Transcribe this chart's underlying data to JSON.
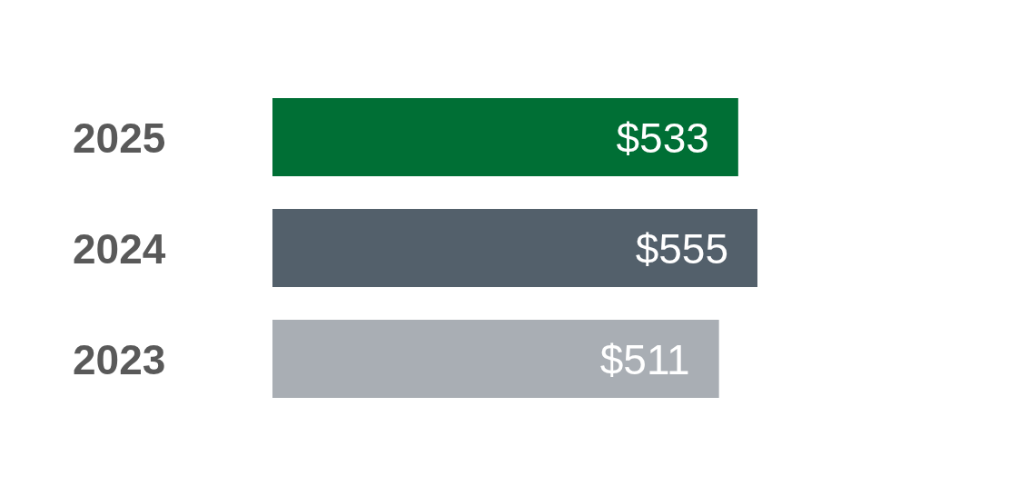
{
  "chart_data": {
    "type": "bar",
    "orientation": "horizontal",
    "categories": [
      "2025",
      "2024",
      "2023"
    ],
    "values": [
      533,
      555,
      511
    ],
    "colors": [
      "#006f35",
      "#53606b",
      "#a9aeb4"
    ],
    "data_labels": true,
    "value_labels": [
      "$533",
      "$555",
      "$511"
    ]
  }
}
